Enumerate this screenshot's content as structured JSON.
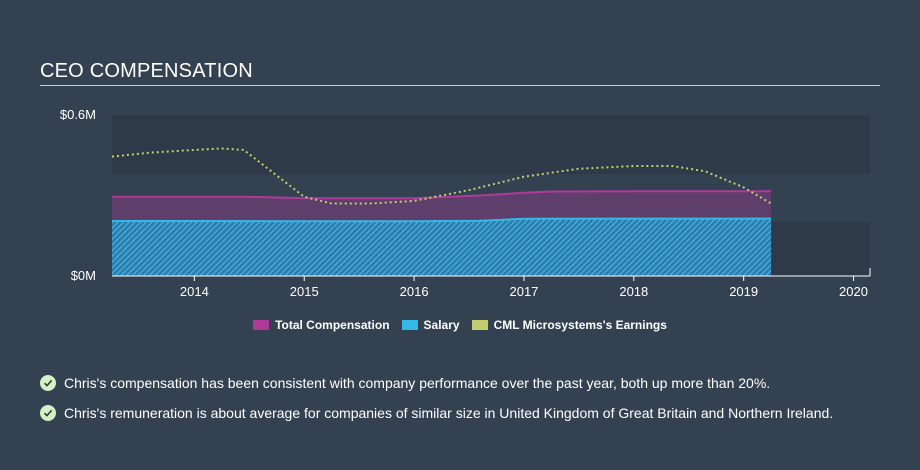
{
  "header": {
    "title": "CEO COMPENSATION"
  },
  "colors": {
    "background": "#344151",
    "plot_band": "#2f3a48",
    "total_compensation": "#b03a9c",
    "salary": "#33b8e8",
    "earnings": "#c3cf6e",
    "axis": "#ffffff"
  },
  "chart_data": {
    "type": "area",
    "title": "",
    "xlabel": "",
    "ylabel": "",
    "xlim": [
      2013.25,
      2020.15
    ],
    "ylim": [
      0,
      0.6
    ],
    "y_ticks": [
      {
        "value": 0.6,
        "label": "$0.6M"
      },
      {
        "value": 0,
        "label": "$0M"
      }
    ],
    "x_ticks": [
      2014,
      2015,
      2016,
      2017,
      2018,
      2019,
      2020
    ],
    "grid": false,
    "legend_position": "bottom-center",
    "series": [
      {
        "name": "Total Compensation",
        "style": "filled-area",
        "x": [
          2013.25,
          2014.0,
          2014.5,
          2015.0,
          2015.5,
          2016.0,
          2016.6,
          2017.0,
          2017.25,
          2018.0,
          2018.5,
          2019.0,
          2019.25
        ],
        "values": [
          0.295,
          0.295,
          0.295,
          0.29,
          0.29,
          0.29,
          0.3,
          0.31,
          0.315,
          0.316,
          0.316,
          0.316,
          0.316
        ]
      },
      {
        "name": "Salary",
        "style": "hatched-area",
        "x": [
          2013.25,
          2014.0,
          2015.0,
          2016.0,
          2016.6,
          2017.0,
          2018.0,
          2019.0,
          2019.25
        ],
        "values": [
          0.205,
          0.205,
          0.204,
          0.204,
          0.206,
          0.213,
          0.214,
          0.214,
          0.214
        ]
      },
      {
        "name": "CML Microsystems's Earnings",
        "style": "dotted-line",
        "x": [
          2013.25,
          2013.6,
          2014.0,
          2014.25,
          2014.45,
          2014.7,
          2015.0,
          2015.25,
          2015.6,
          2016.0,
          2016.5,
          2017.0,
          2017.5,
          2018.0,
          2018.35,
          2018.65,
          2019.0,
          2019.25
        ],
        "values": [
          0.445,
          0.46,
          0.47,
          0.475,
          0.47,
          0.39,
          0.295,
          0.27,
          0.27,
          0.28,
          0.32,
          0.37,
          0.4,
          0.41,
          0.41,
          0.39,
          0.33,
          0.27
        ]
      }
    ]
  },
  "notes": [
    {
      "icon": "check-icon",
      "text": "Chris's compensation has been consistent with company performance over the past year, both up more than 20%."
    },
    {
      "icon": "check-icon",
      "text": "Chris's remuneration is about average for companies of similar size in United Kingdom of Great Britain and Northern Ireland."
    }
  ]
}
